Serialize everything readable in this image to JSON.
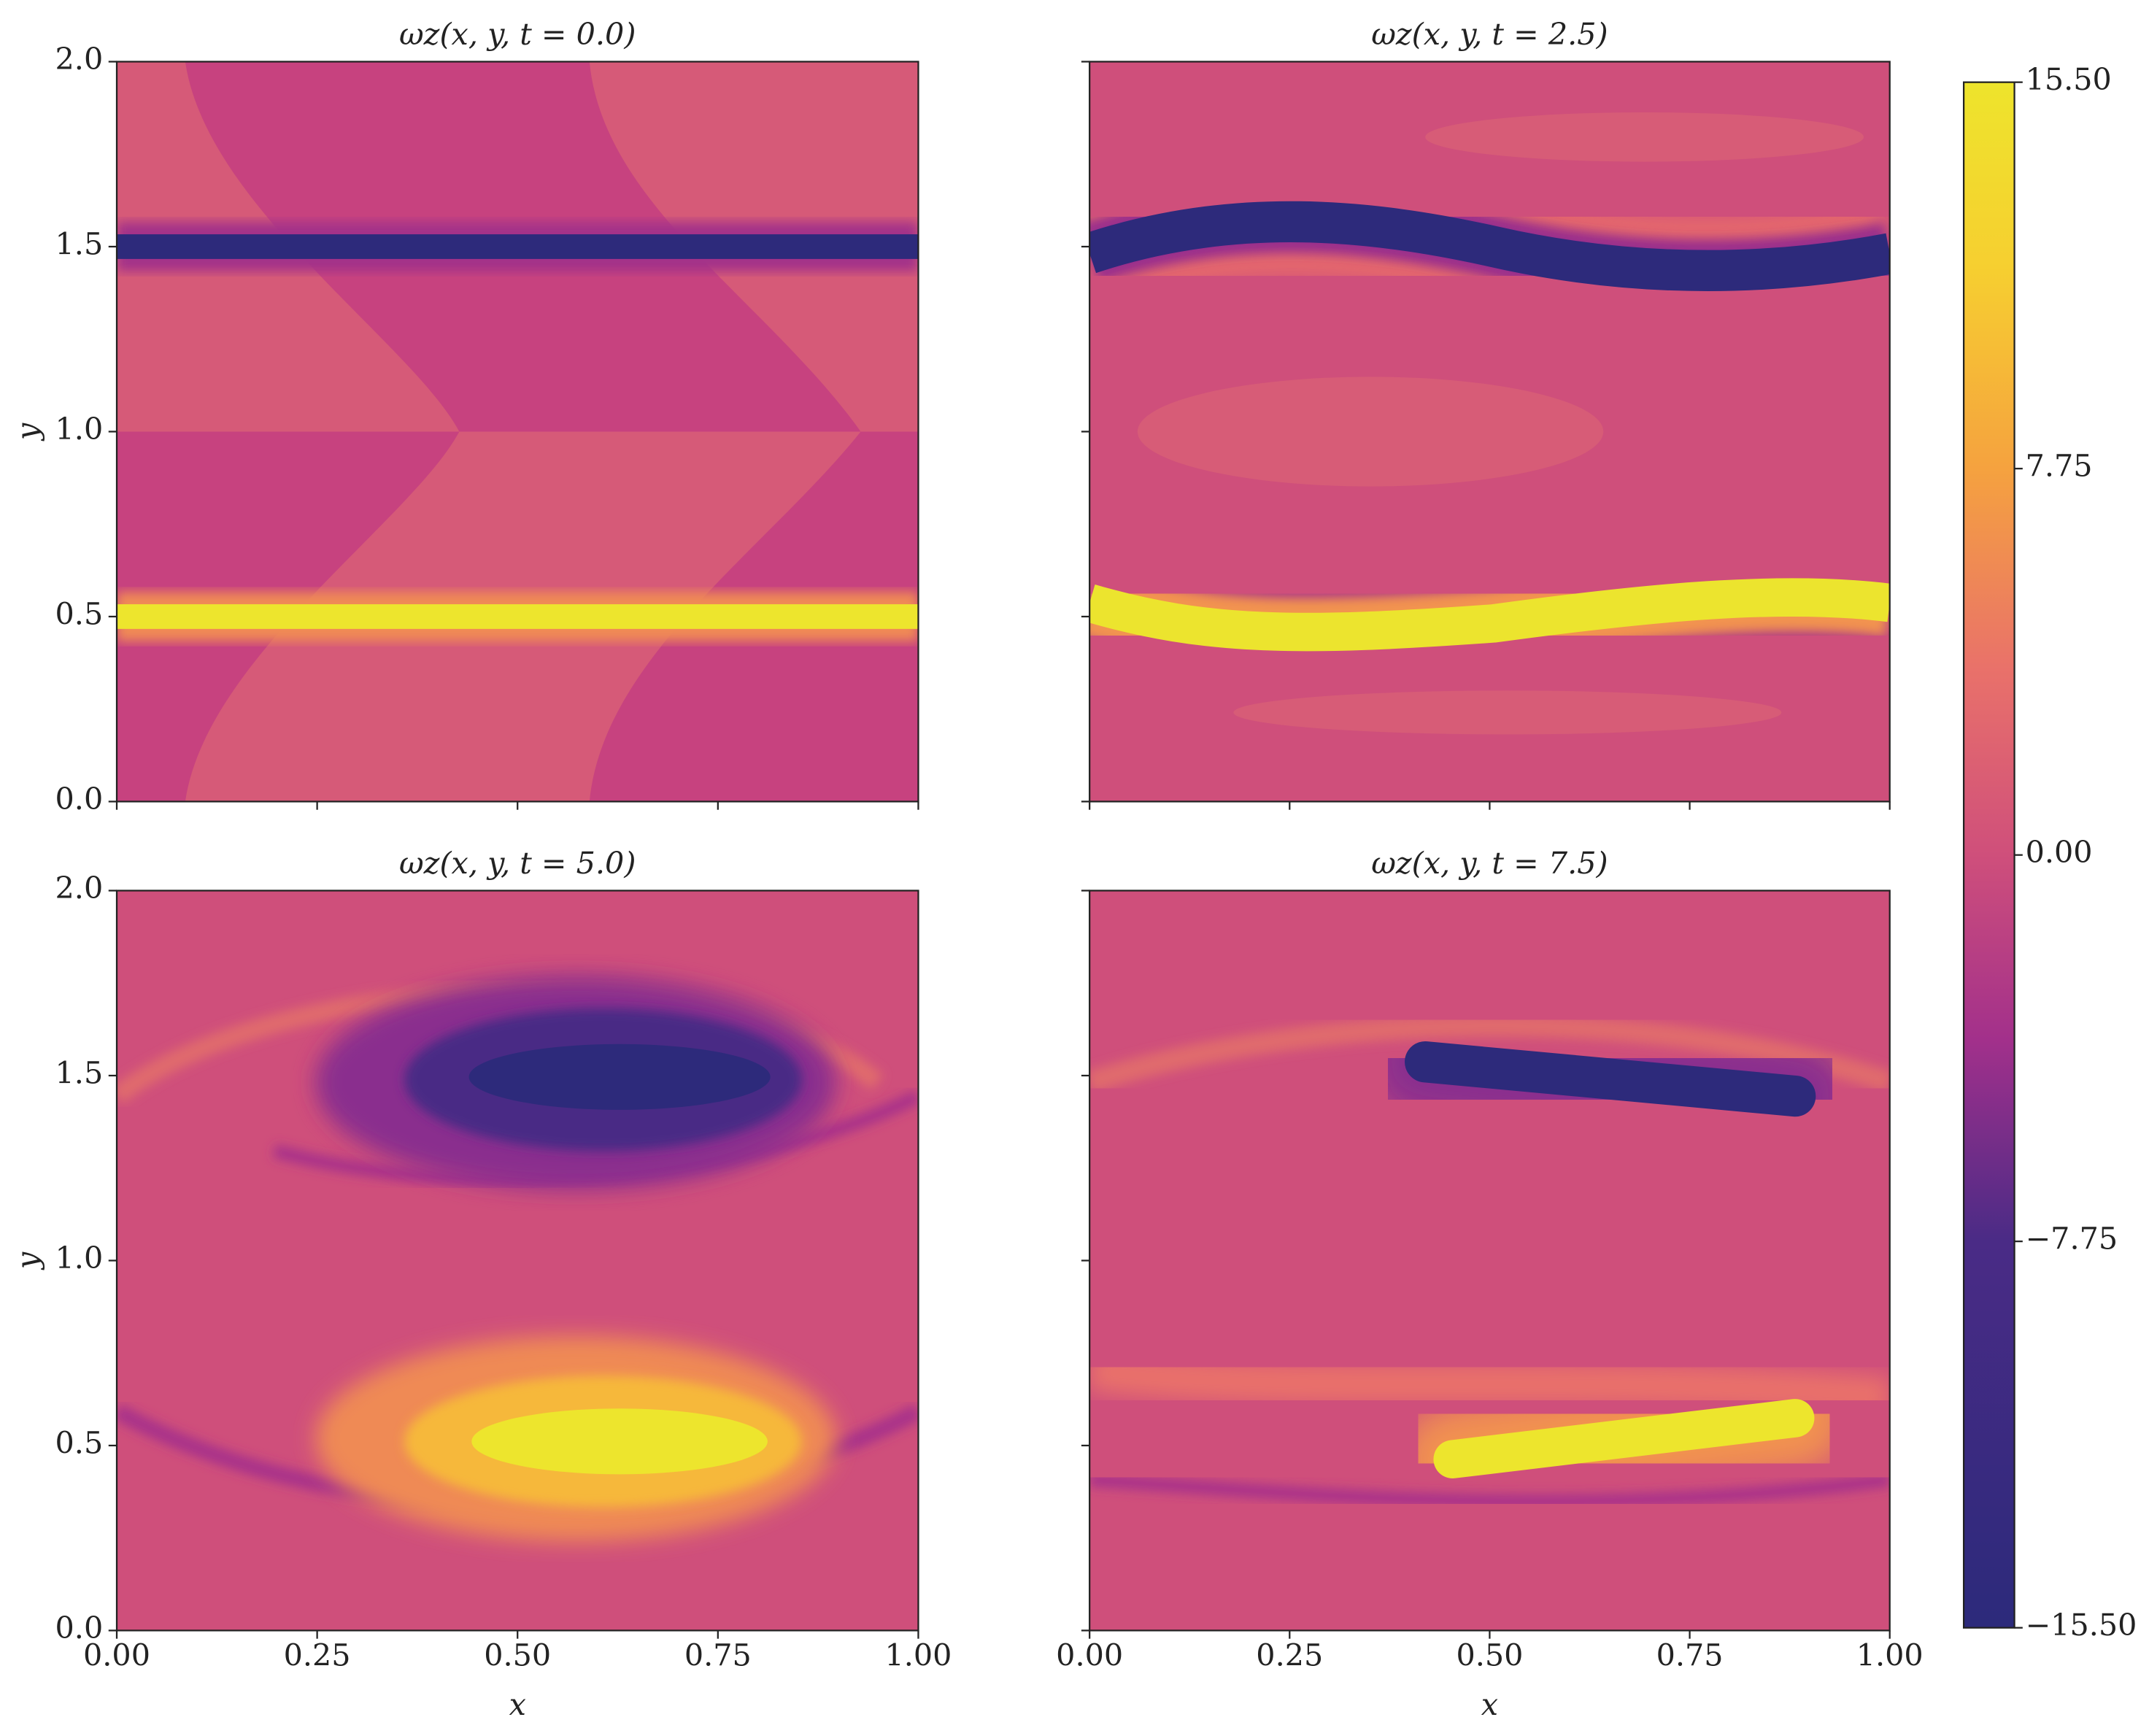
{
  "chart_data": [
    {
      "type": "contour",
      "title": "ωz(x, y, t = 0.0)",
      "ylabel": "y",
      "xlim": [
        0,
        1
      ],
      "ylim": [
        0,
        2
      ],
      "xticks": [
        0,
        0.25,
        0.5,
        0.75,
        1
      ],
      "yticks": [
        {
          "value": 0,
          "label": "0.0"
        },
        {
          "value": 0.5,
          "label": "0.5"
        },
        {
          "value": 1,
          "label": "1.0"
        },
        {
          "value": 1.5,
          "label": "1.5"
        },
        {
          "value": 2,
          "label": "2.0"
        }
      ]
    },
    {
      "type": "contour",
      "title": "ωz(x, y, t = 2.5)",
      "xlim": [
        0,
        1
      ],
      "ylim": [
        0,
        2
      ],
      "xticks": [
        0,
        0.25,
        0.5,
        0.75,
        1
      ],
      "yticks": [
        0,
        0.5,
        1,
        1.5,
        2
      ]
    },
    {
      "type": "contour",
      "title": "ωz(x, y, t = 5.0)",
      "xlabel": "x",
      "ylabel": "y",
      "xlim": [
        0,
        1
      ],
      "ylim": [
        0,
        2
      ],
      "xticks": [
        {
          "value": 0,
          "label": "0.00"
        },
        {
          "value": 0.25,
          "label": "0.25"
        },
        {
          "value": 0.5,
          "label": "0.50"
        },
        {
          "value": 0.75,
          "label": "0.75"
        },
        {
          "value": 1,
          "label": "1.00"
        }
      ],
      "yticks": [
        {
          "value": 0,
          "label": "0.0"
        },
        {
          "value": 0.5,
          "label": "0.5"
        },
        {
          "value": 1,
          "label": "1.0"
        },
        {
          "value": 1.5,
          "label": "1.5"
        },
        {
          "value": 2,
          "label": "2.0"
        }
      ]
    },
    {
      "type": "contour",
      "title": "ωz(x, y, t = 7.5)",
      "xlabel": "x",
      "xlim": [
        0,
        1
      ],
      "ylim": [
        0,
        2
      ],
      "xticks": [
        {
          "value": 0,
          "label": "0.00"
        },
        {
          "value": 0.25,
          "label": "0.25"
        },
        {
          "value": 0.5,
          "label": "0.50"
        },
        {
          "value": 0.75,
          "label": "0.75"
        },
        {
          "value": 1,
          "label": "1.00"
        }
      ],
      "yticks": [
        0,
        0.5,
        1,
        1.5,
        2
      ]
    },
    {
      "type": "colorbar",
      "colormap": "plasma",
      "clim": [
        -15.5,
        15.5
      ],
      "ticks": [
        {
          "value": -15.5,
          "label": "−15.50"
        },
        {
          "value": -7.75,
          "label": "−7.75"
        },
        {
          "value": 0,
          "label": "0.00"
        },
        {
          "value": 7.75,
          "label": "7.75"
        },
        {
          "value": 15.5,
          "label": "15.50"
        }
      ]
    }
  ]
}
